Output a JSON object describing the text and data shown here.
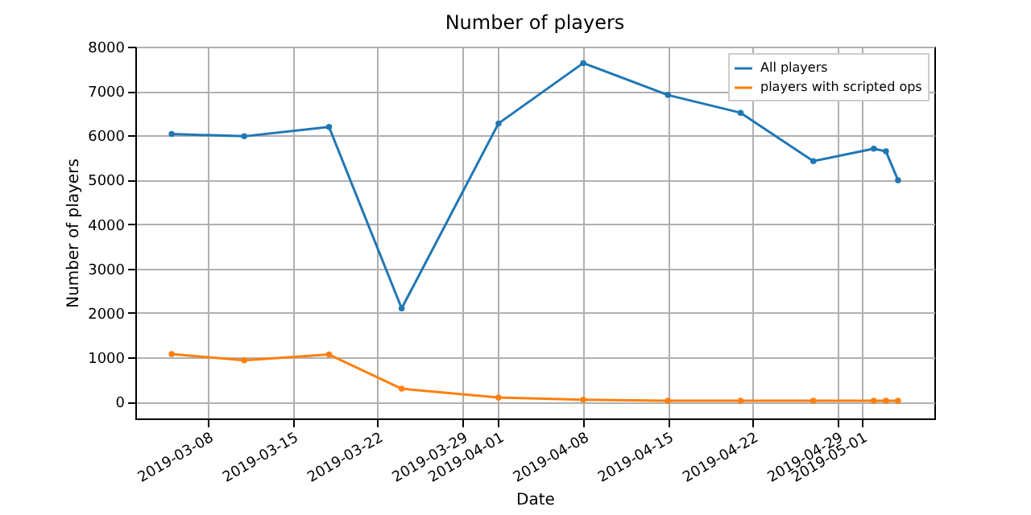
{
  "chart_data": {
    "type": "line",
    "title": "Number of players",
    "xlabel": "Date",
    "ylabel": "Number of players",
    "x": [
      "2019-03-05",
      "2019-03-11",
      "2019-03-18",
      "2019-03-24",
      "2019-04-01",
      "2019-04-08",
      "2019-04-15",
      "2019-04-21",
      "2019-04-27",
      "2019-05-02",
      "2019-05-03",
      "2019-05-04"
    ],
    "series": [
      {
        "name": "All players",
        "color": "#1f77b4",
        "values": [
          6030,
          5980,
          6190,
          2100,
          6270,
          7630,
          6910,
          6510,
          5420,
          5700,
          5640,
          4990
        ]
      },
      {
        "name": "players with scripted ops",
        "color": "#ff7f0e",
        "values": [
          1070,
          930,
          1060,
          290,
          90,
          40,
          20,
          20,
          20,
          20,
          20,
          20
        ]
      }
    ],
    "xlim": [
      "2019-03-02",
      "2019-05-07"
    ],
    "xticks": [
      "2019-03-08",
      "2019-03-15",
      "2019-03-22",
      "2019-03-29",
      "2019-04-01",
      "2019-04-08",
      "2019-04-15",
      "2019-04-22",
      "2019-04-29",
      "2019-05-01"
    ],
    "ylim": [
      -380,
      8000
    ],
    "yticks": [
      0,
      1000,
      2000,
      3000,
      4000,
      5000,
      6000,
      7000,
      8000
    ],
    "grid": true,
    "legend": "top right",
    "marker": "circle",
    "line_style": "solid"
  }
}
